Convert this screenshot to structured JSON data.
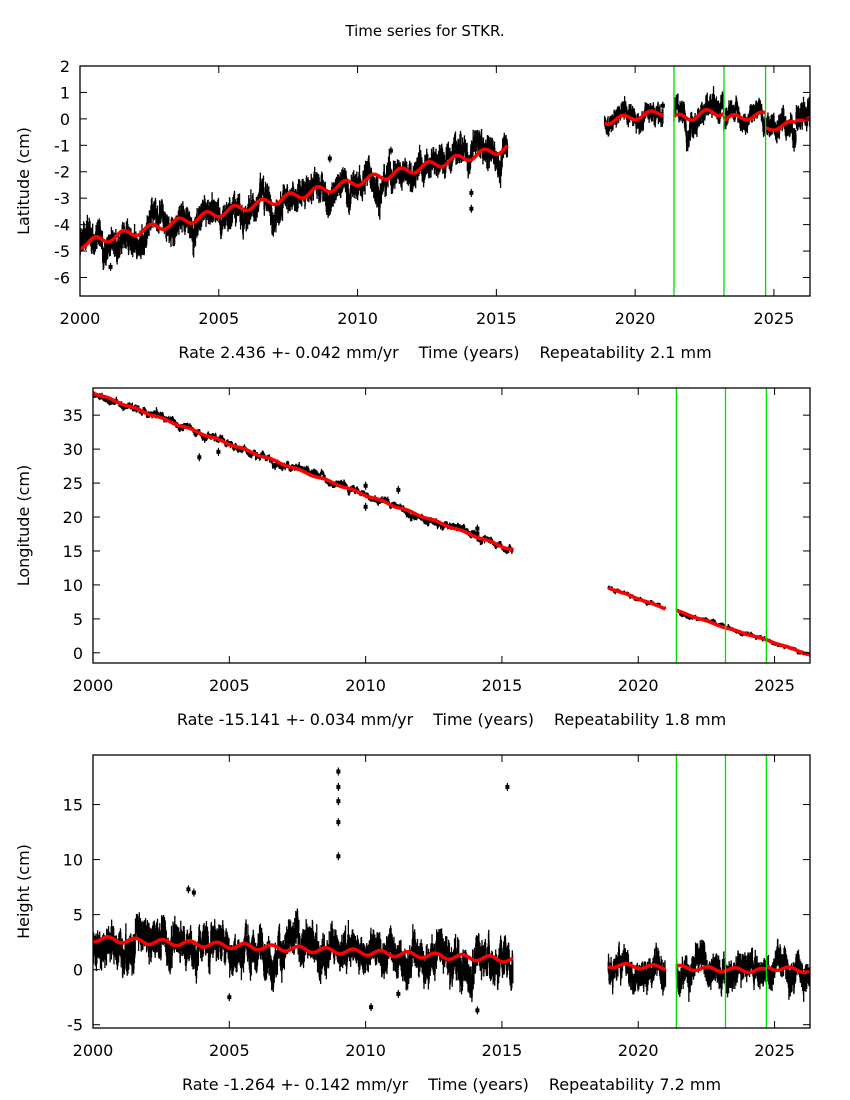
{
  "title": "Time series for STKR.",
  "chart_data": [
    {
      "type": "scatter",
      "component": "Latitude",
      "ylabel": "Latitude (cm)",
      "xlabel": "Time (years)",
      "rate_text": "Rate 2.436 +- 0.042 mm/yr",
      "repeatability_text": "Repeatability 2.1 mm",
      "xlim": [
        2000,
        2026.3
      ],
      "ylim": [
        -6.7,
        2
      ],
      "xticks": [
        2000,
        2005,
        2010,
        2015,
        2020,
        2025
      ],
      "yticks": [
        2,
        1,
        0,
        -1,
        -2,
        -3,
        -4,
        -5,
        -6
      ],
      "grid": false,
      "event_lines": [
        2021.4,
        2023.2,
        2024.7
      ],
      "event_line_color": "#00dd00",
      "data_color": "#000000",
      "model_color": "#ff0000",
      "segments": [
        {
          "start": 2000.0,
          "end": 2015.4,
          "y_start": -4.75,
          "y_end": -1.1,
          "annual_amp": 0.15,
          "noise": 0.35
        },
        {
          "start": 2018.9,
          "end": 2021.0,
          "y_start": -0.1,
          "y_end": 0.25,
          "annual_amp": 0.12,
          "noise": 0.25
        },
        {
          "start": 2021.4,
          "end": 2023.2,
          "y_start": 0.0,
          "y_end": 0.3,
          "annual_amp": 0.15,
          "noise": 0.3
        },
        {
          "start": 2023.2,
          "end": 2024.7,
          "y_start": 0.0,
          "y_end": 0.15,
          "annual_amp": 0.12,
          "noise": 0.25
        },
        {
          "start": 2024.7,
          "end": 2025.8,
          "y_start": -0.4,
          "y_end": -0.15,
          "annual_amp": 0.1,
          "noise": 0.3
        },
        {
          "start": 2025.8,
          "end": 2026.3,
          "y_start": -0.05,
          "y_end": 0.05,
          "annual_amp": 0.05,
          "noise": 0.35
        }
      ],
      "outliers": [
        [
          2001.1,
          -5.6
        ],
        [
          2014.1,
          -3.4
        ],
        [
          2014.1,
          -2.8
        ],
        [
          2009.0,
          -1.5
        ],
        [
          2011.2,
          -1.2
        ],
        [
          2021.0,
          0.5
        ]
      ]
    },
    {
      "type": "scatter",
      "component": "Longitude",
      "ylabel": "Longitude (cm)",
      "xlabel": "Time (years)",
      "rate_text": "Rate -15.141 +- 0.034 mm/yr",
      "repeatability_text": "Repeatability 1.8 mm",
      "xlim": [
        2000,
        2026.3
      ],
      "ylim": [
        -1.5,
        39
      ],
      "xticks": [
        2000,
        2005,
        2010,
        2015,
        2020,
        2025
      ],
      "yticks": [
        35,
        30,
        25,
        20,
        15,
        10,
        5,
        0
      ],
      "grid": false,
      "event_lines": [
        2021.4,
        2023.2,
        2024.7
      ],
      "event_line_color": "#00dd00",
      "data_color": "#000000",
      "model_color": "#ff0000",
      "segments": [
        {
          "start": 2000.0,
          "end": 2015.4,
          "y_start": 38.3,
          "y_end": 15.1,
          "annual_amp": 0.1,
          "noise": 0.35
        },
        {
          "start": 2018.9,
          "end": 2021.0,
          "y_start": 9.6,
          "y_end": 6.5,
          "annual_amp": 0.05,
          "noise": 0.2
        },
        {
          "start": 2021.4,
          "end": 2023.2,
          "y_start": 6.2,
          "y_end": 3.7,
          "annual_amp": 0.05,
          "noise": 0.2
        },
        {
          "start": 2023.2,
          "end": 2024.7,
          "y_start": 3.7,
          "y_end": 1.9,
          "annual_amp": 0.05,
          "noise": 0.2
        },
        {
          "start": 2024.7,
          "end": 2026.3,
          "y_start": 1.9,
          "y_end": -0.3,
          "annual_amp": 0.05,
          "noise": 0.2
        }
      ],
      "outliers": [
        [
          2004.6,
          29.6
        ],
        [
          2003.9,
          28.8
        ],
        [
          2010.0,
          24.6
        ],
        [
          2010.0,
          21.5
        ],
        [
          2011.2,
          24.0
        ],
        [
          2014.1,
          17.6
        ],
        [
          2014.1,
          18.3
        ]
      ]
    },
    {
      "type": "scatter",
      "component": "Height",
      "ylabel": "Height (cm)",
      "xlabel": "Time (years)",
      "rate_text": "Rate -1.264 +- 0.142 mm/yr",
      "repeatability_text": "Repeatability 7.2 mm",
      "xlim": [
        2000,
        2026.3
      ],
      "ylim": [
        -5.3,
        19.5
      ],
      "xticks": [
        2000,
        2005,
        2010,
        2015,
        2020,
        2025
      ],
      "yticks": [
        15,
        10,
        5,
        0,
        -5
      ],
      "grid": false,
      "event_lines": [
        2021.4,
        2023.2,
        2024.7
      ],
      "event_line_color": "#00dd00",
      "data_color": "#000000",
      "model_color": "#ff0000",
      "segments": [
        {
          "start": 2000.0,
          "end": 2015.4,
          "y_start": 2.8,
          "y_end": 0.9,
          "annual_amp": 0.25,
          "noise": 1.1
        },
        {
          "start": 2018.9,
          "end": 2021.0,
          "y_start": 0.4,
          "y_end": 0.2,
          "annual_amp": 0.2,
          "noise": 0.9
        },
        {
          "start": 2021.4,
          "end": 2023.2,
          "y_start": 0.2,
          "y_end": 0.0,
          "annual_amp": 0.2,
          "noise": 0.9
        },
        {
          "start": 2023.2,
          "end": 2024.7,
          "y_start": 0.0,
          "y_end": -0.1,
          "annual_amp": 0.2,
          "noise": 0.9
        },
        {
          "start": 2024.7,
          "end": 2026.3,
          "y_start": 0.2,
          "y_end": -0.1,
          "annual_amp": 0.2,
          "noise": 0.9
        }
      ],
      "outliers": [
        [
          2009.0,
          18.0
        ],
        [
          2009.0,
          16.6
        ],
        [
          2009.0,
          15.3
        ],
        [
          2009.0,
          13.4
        ],
        [
          2009.0,
          10.3
        ],
        [
          2015.2,
          16.6
        ],
        [
          2010.2,
          -3.4
        ],
        [
          2005.0,
          -2.5
        ],
        [
          2014.1,
          -3.7
        ],
        [
          2003.5,
          7.3
        ],
        [
          2003.7,
          7.0
        ],
        [
          2011.2,
          -2.2
        ]
      ]
    }
  ]
}
